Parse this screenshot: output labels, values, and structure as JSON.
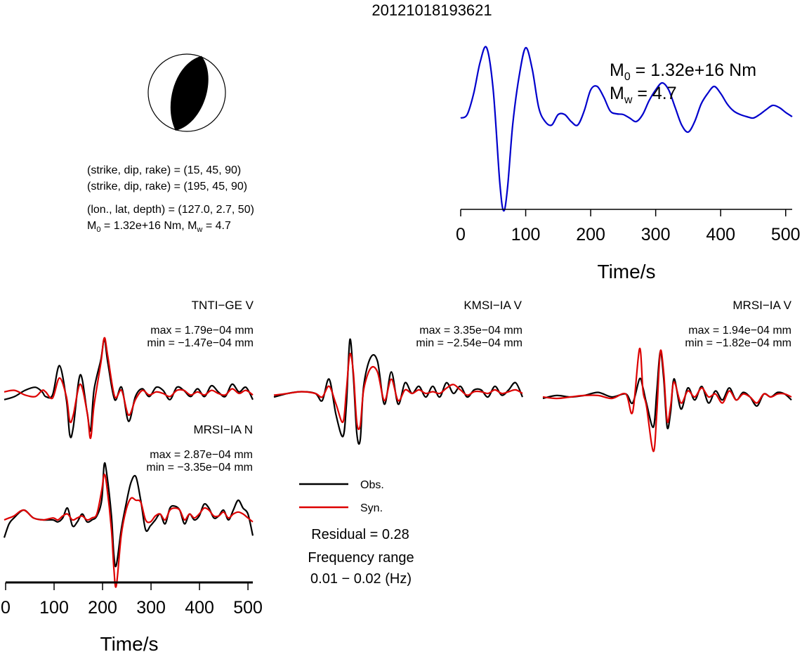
{
  "title": "20121018193621",
  "focal": {
    "plane1": "(strike, dip, rake) = (15, 45, 90)",
    "plane2": "(strike, dip, rake) = (195, 45, 90)",
    "location": "(lon., lat, depth) = (127.0, 2.7, 50)",
    "moment_line": {
      "m0_sym": "M",
      "m0_sub": "0",
      "m0_val": " = 1.32e+16 Nm, ",
      "mw_sym": "M",
      "mw_sub": "w",
      "mw_val": " = 4.7"
    }
  },
  "stf_label": {
    "m0_sym": "M",
    "m0_sub": "0",
    "m0_val": " = 1.32e+16 Nm",
    "mw_sym": "M",
    "mw_sub": "w",
    "mw_val": " = 4.7"
  },
  "legend": {
    "obs": "Obs.",
    "syn": "Syn.",
    "residual": "Residual = 0.28",
    "freq_title": "Frequency range",
    "freq_value": "0.01 − 0.02 (Hz)"
  },
  "colors": {
    "obs": "#000000",
    "syn": "#dd0000",
    "stf": "#0000cc"
  },
  "chart_data": [
    {
      "type": "line",
      "name": "source-time-function",
      "xlabel": "Time/s",
      "xlim": [
        0,
        510
      ],
      "ticks": [
        0,
        100,
        200,
        300,
        400,
        500
      ],
      "series": [
        {
          "role": "stf",
          "x": [
            0,
            10,
            20,
            30,
            40,
            50,
            60,
            66,
            72,
            80,
            90,
            100,
            110,
            120,
            130,
            140,
            150,
            160,
            170,
            180,
            190,
            200,
            210,
            220,
            230,
            240,
            250,
            260,
            270,
            280,
            290,
            300,
            310,
            320,
            330,
            340,
            350,
            360,
            370,
            380,
            390,
            400,
            410,
            420,
            430,
            440,
            450,
            460,
            470,
            480,
            490,
            500,
            510
          ],
          "y": [
            0,
            0.05,
            0.35,
            0.8,
            1.0,
            0.4,
            -0.9,
            -1.32,
            -1.0,
            -0.1,
            0.6,
            1.0,
            0.7,
            0.15,
            -0.05,
            -0.1,
            0.05,
            0.05,
            -0.05,
            -0.1,
            0.1,
            0.4,
            0.45,
            0.3,
            0.1,
            0.06,
            0.05,
            0.0,
            -0.05,
            0.05,
            0.25,
            0.4,
            0.5,
            0.4,
            0.15,
            -0.1,
            -0.2,
            -0.05,
            0.2,
            0.35,
            0.45,
            0.35,
            0.2,
            0.1,
            0.05,
            0.02,
            0.0,
            0.05,
            0.12,
            0.18,
            0.15,
            0.08,
            0.02
          ]
        }
      ]
    },
    {
      "type": "line",
      "station": "TNTI−GE V",
      "max": "max = 1.79e−04 mm",
      "min": "min = −1.47e−04 mm",
      "xlim": [
        0,
        510
      ],
      "series": [
        {
          "role": "obs",
          "x": [
            0,
            15,
            30,
            45,
            55,
            60,
            70,
            80,
            90,
            95,
            100,
            110,
            120,
            125,
            130,
            140,
            145,
            150,
            160,
            170,
            180,
            190,
            200,
            210,
            220,
            230,
            240,
            250,
            260,
            270,
            280,
            290,
            300,
            310,
            320,
            330,
            340,
            350,
            360
          ],
          "y": [
            -0.2,
            -0.1,
            0.1,
            0.2,
            0.05,
            -0.1,
            -0.05,
            0.9,
            -0.2,
            -1.35,
            -1.1,
            0.6,
            -0.6,
            -1.2,
            0.1,
            1.1,
            1.75,
            1.0,
            -0.2,
            0.2,
            -0.9,
            -0.1,
            0.15,
            -0.1,
            0.2,
            0.1,
            -0.2,
            0.2,
            0.1,
            -0.1,
            0.15,
            -0.1,
            0.25,
            0.05,
            -0.1,
            0.3,
            0.05,
            0.2,
            -0.2
          ]
        },
        {
          "role": "syn",
          "x": [
            0,
            15,
            30,
            45,
            55,
            60,
            70,
            80,
            90,
            95,
            100,
            110,
            120,
            125,
            130,
            140,
            145,
            150,
            160,
            170,
            180,
            190,
            200,
            210,
            220,
            230,
            240,
            250,
            260,
            270,
            280,
            290,
            300,
            310,
            320,
            330,
            340,
            350,
            360
          ],
          "y": [
            0.05,
            0.1,
            -0.05,
            -0.1,
            0.1,
            0.05,
            -0.15,
            0.5,
            -0.1,
            -0.9,
            -0.7,
            0.3,
            -0.6,
            -1.45,
            -0.4,
            1.0,
            1.8,
            1.2,
            -0.1,
            0.1,
            -0.7,
            -0.2,
            0.1,
            -0.05,
            0.05,
            0.0,
            -0.1,
            0.1,
            0.1,
            -0.05,
            0.05,
            -0.05,
            0.1,
            0.0,
            -0.05,
            0.15,
            0.0,
            0.1,
            -0.05
          ]
        }
      ]
    },
    {
      "type": "line",
      "station": "KMSI−IA V",
      "max": "max = 3.35e−04 mm",
      "min": "min = −2.54e−04 mm",
      "xlim": [
        0,
        510
      ],
      "series": [
        {
          "role": "obs",
          "x": [
            0,
            20,
            40,
            60,
            70,
            80,
            90,
            100,
            105,
            110,
            115,
            120,
            125,
            130,
            140,
            150,
            160,
            170,
            180,
            190,
            200,
            210,
            220,
            230,
            240,
            250,
            260,
            270,
            280,
            290,
            300,
            310,
            320,
            330,
            340,
            350,
            360
          ],
          "y": [
            -0.1,
            0.0,
            0.05,
            0.0,
            -0.2,
            0.4,
            -0.6,
            -1.2,
            -0.3,
            1.5,
            0.5,
            -1.1,
            -1.3,
            0.2,
            1.0,
            0.9,
            -0.3,
            0.6,
            -0.3,
            0.3,
            0.0,
            0.2,
            -0.1,
            0.2,
            -0.1,
            0.3,
            0.0,
            0.2,
            -0.1,
            0.1,
            0.1,
            -0.1,
            0.2,
            -0.05,
            0.1,
            0.3,
            -0.1
          ]
        },
        {
          "role": "syn",
          "x": [
            0,
            20,
            40,
            60,
            70,
            80,
            90,
            100,
            105,
            110,
            115,
            120,
            125,
            130,
            140,
            150,
            160,
            170,
            180,
            190,
            200,
            210,
            220,
            230,
            240,
            250,
            260,
            270,
            280,
            290,
            300,
            310,
            320,
            330,
            340,
            350,
            360
          ],
          "y": [
            -0.05,
            0.0,
            0.05,
            0.0,
            -0.1,
            0.2,
            -0.3,
            -0.8,
            0.1,
            1.1,
            0.6,
            -0.8,
            -0.9,
            0.1,
            0.7,
            0.6,
            -0.2,
            0.4,
            -0.2,
            0.1,
            0.0,
            0.1,
            0.0,
            0.05,
            0.0,
            0.15,
            0.25,
            0.1,
            -0.05,
            0.05,
            0.05,
            0.0,
            0.1,
            0.0,
            0.05,
            0.1,
            0.0
          ]
        }
      ]
    },
    {
      "type": "line",
      "station": "MRSI−IA V",
      "max": "max = 1.94e−04 mm",
      "min": "min = −1.82e−04 mm",
      "xlim": [
        0,
        510
      ],
      "series": [
        {
          "role": "obs",
          "x": [
            0,
            20,
            40,
            60,
            80,
            100,
            120,
            130,
            140,
            145,
            150,
            160,
            165,
            170,
            175,
            180,
            185,
            190,
            200,
            210,
            220,
            230,
            240,
            250,
            260,
            270,
            280,
            290,
            300,
            310,
            320,
            330,
            340,
            350,
            360
          ],
          "y": [
            -0.05,
            0.05,
            0.0,
            0.05,
            0.15,
            0.0,
            0.1,
            -0.2,
            0.6,
            0.3,
            -0.2,
            -1.0,
            0.2,
            1.5,
            0.6,
            -1.0,
            -0.5,
            0.6,
            -0.4,
            0.3,
            -0.1,
            0.35,
            -0.2,
            0.2,
            -0.1,
            0.3,
            -0.1,
            0.15,
            0.0,
            -0.3,
            0.1,
            0.0,
            0.15,
            0.1,
            -0.1
          ]
        },
        {
          "role": "syn",
          "x": [
            0,
            20,
            40,
            60,
            80,
            100,
            120,
            130,
            140,
            145,
            150,
            160,
            165,
            170,
            175,
            180,
            185,
            190,
            200,
            210,
            220,
            230,
            240,
            250,
            260,
            270,
            280,
            290,
            300,
            310,
            320,
            330,
            340,
            350,
            360
          ],
          "y": [
            0.0,
            -0.05,
            0.0,
            0.05,
            0.05,
            -0.05,
            0.1,
            -0.5,
            1.6,
            0.2,
            -0.3,
            -1.8,
            -0.5,
            1.5,
            0.8,
            -0.8,
            -0.3,
            0.5,
            -0.2,
            0.2,
            0.0,
            0.3,
            0.0,
            0.1,
            -0.2,
            0.2,
            -0.1,
            0.1,
            0.0,
            -0.2,
            0.1,
            0.0,
            0.1,
            0.1,
            0.0
          ]
        }
      ]
    },
    {
      "type": "line",
      "station": "MRSI−IA N",
      "max": "max = 2.87e−04 mm",
      "min": "min = −3.35e−04 mm",
      "xlabel": "Time/s",
      "xlim": [
        0,
        510
      ],
      "ticks": [
        0,
        100,
        200,
        300,
        400,
        500
      ],
      "series": [
        {
          "role": "obs",
          "x": [
            0,
            10,
            20,
            40,
            60,
            80,
            100,
            110,
            120,
            130,
            140,
            150,
            160,
            170,
            180,
            190,
            200,
            205,
            210,
            220,
            225,
            230,
            240,
            250,
            260,
            270,
            280,
            290,
            300,
            310,
            320,
            330,
            340,
            350,
            360,
            370,
            380,
            390,
            400,
            410,
            420,
            430,
            440,
            450,
            460,
            470,
            480,
            490,
            500,
            510
          ],
          "y": [
            -0.9,
            -0.2,
            0.1,
            0.5,
            0.1,
            0.0,
            0.0,
            -0.1,
            0.1,
            0.6,
            -0.3,
            -0.1,
            0.3,
            -0.1,
            0.0,
            0.2,
            1.0,
            2.8,
            2.4,
            0.2,
            -1.8,
            -2.3,
            -0.5,
            0.8,
            1.9,
            2.2,
            1.0,
            -0.5,
            -0.3,
            0.0,
            0.3,
            -0.2,
            0.6,
            0.7,
            0.5,
            -0.2,
            0.3,
            0.0,
            0.2,
            0.8,
            0.6,
            0.1,
            0.2,
            0.5,
            0.0,
            0.5,
            1.0,
            0.6,
            0.3,
            -0.8
          ]
        },
        {
          "role": "syn",
          "x": [
            0,
            10,
            20,
            40,
            60,
            80,
            100,
            110,
            120,
            130,
            140,
            150,
            160,
            170,
            180,
            190,
            200,
            205,
            210,
            220,
            225,
            230,
            240,
            250,
            260,
            270,
            280,
            290,
            300,
            310,
            320,
            330,
            340,
            350,
            360,
            370,
            380,
            390,
            400,
            410,
            420,
            430,
            440,
            450,
            460,
            470,
            480,
            490,
            500,
            510
          ],
          "y": [
            0.0,
            0.1,
            0.2,
            0.5,
            0.1,
            0.0,
            0.1,
            0.0,
            0.2,
            0.3,
            0.0,
            0.1,
            0.2,
            0.0,
            0.1,
            0.3,
            1.5,
            2.3,
            1.8,
            -0.5,
            -2.5,
            -3.35,
            -0.8,
            0.5,
            1.1,
            1.0,
            0.9,
            0.0,
            -0.1,
            0.2,
            0.3,
            0.0,
            0.5,
            0.6,
            0.5,
            0.0,
            0.3,
            0.1,
            0.3,
            0.6,
            0.5,
            0.2,
            0.2,
            0.4,
            0.1,
            0.3,
            0.4,
            0.3,
            0.1,
            -0.1
          ]
        }
      ]
    }
  ]
}
